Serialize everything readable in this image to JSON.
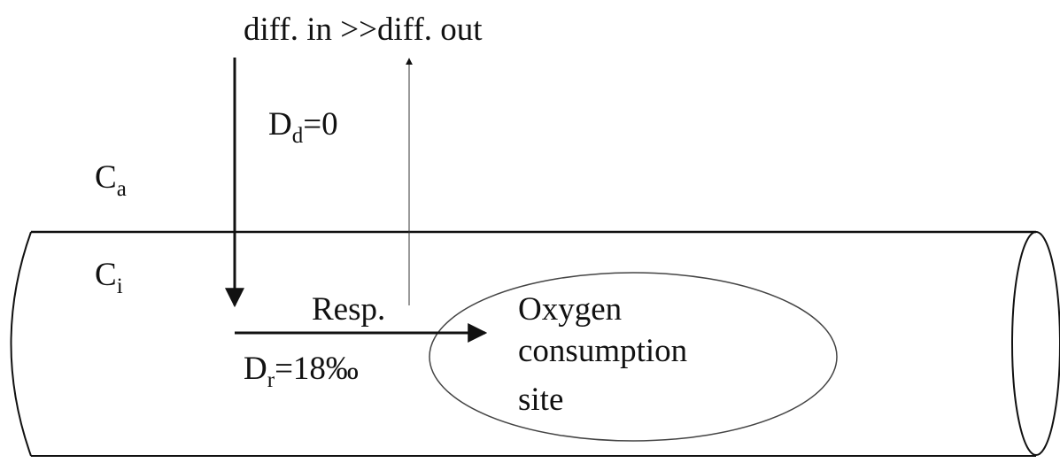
{
  "header": {
    "title": "diff. in >>diff. out"
  },
  "labels": [
    {
      "base": "D",
      "sub": "d",
      "rest": "=0"
    },
    {
      "base": "C",
      "sub": "a"
    },
    {
      "base": "C",
      "sub": "i"
    },
    {
      "base": "Resp."
    },
    {
      "base": "D",
      "sub": "r",
      "rest": "=18‰"
    }
  ],
  "site": {
    "lines": [
      "Oxygen",
      "consumption",
      "site"
    ]
  }
}
